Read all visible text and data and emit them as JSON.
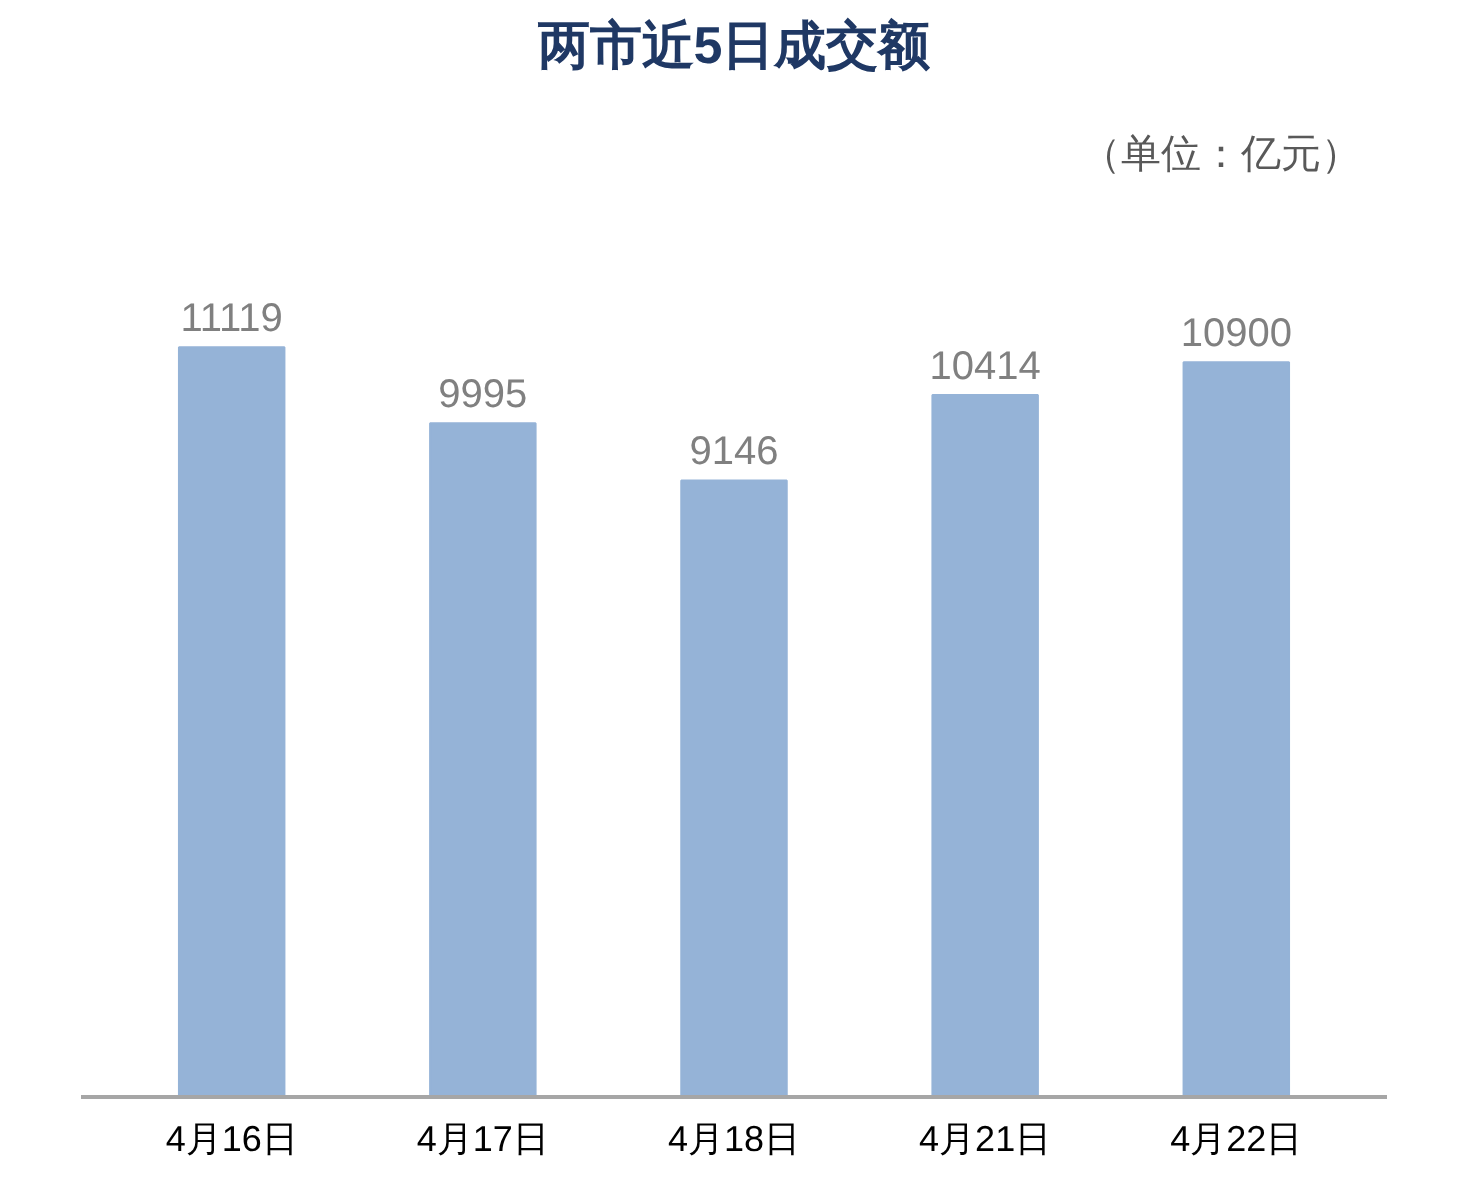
{
  "chart_data": {
    "type": "bar",
    "title": "两市近5日成交额",
    "annotations": [
      "（单位：亿元）"
    ],
    "categories": [
      "4月16日",
      "4月17日",
      "4月18日",
      "4月21日",
      "4月22日"
    ],
    "values": [
      11119,
      9995,
      9146,
      10414,
      10900
    ],
    "color": "#95b3d7",
    "data_labels": true,
    "grid": false
  }
}
